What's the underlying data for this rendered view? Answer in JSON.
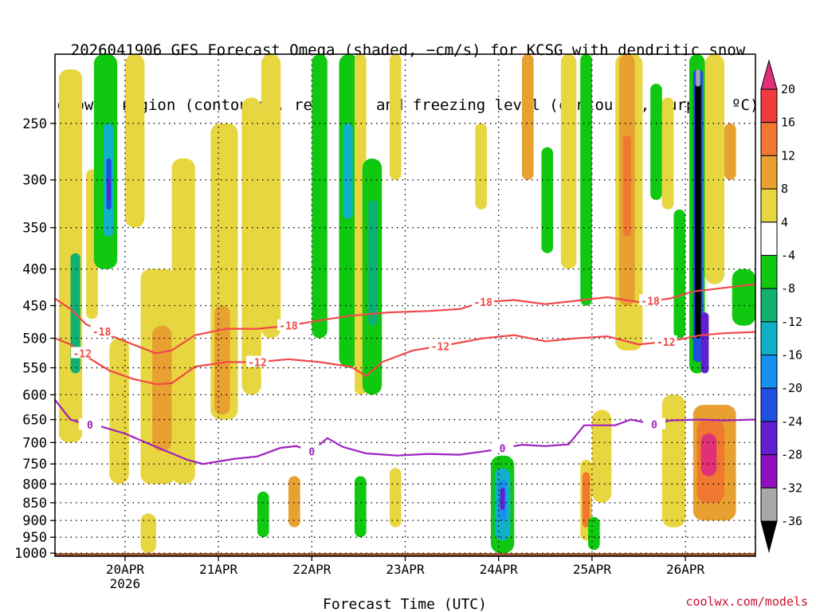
{
  "title_line1": "2026041906 GFS Forecast Omega (shaded, −cm/s) for KCSG with dendritic snow",
  "title_line2": "growth region (contoured, red, ºC) and freezing level (contoured, purple, ºC)",
  "credit": "coolwx.com/models",
  "chart_data": {
    "type": "heatmap",
    "title": "2026041906 GFS Forecast Omega (shaded, −cm/s) for KCSG with dendritic snow growth region (contoured, red, ºC) and freezing level (contoured, purple, ºC)",
    "xlabel": "Forecast Time (UTC)",
    "ylabel": "",
    "x_range_hours_since_2026041906": [
      0,
      180
    ],
    "x_ticks": [
      {
        "label": "20APR",
        "sublabel": "2026",
        "hour": 18
      },
      {
        "label": "21APR",
        "hour": 42
      },
      {
        "label": "22APR",
        "hour": 66
      },
      {
        "label": "23APR",
        "hour": 90
      },
      {
        "label": "24APR",
        "hour": 114
      },
      {
        "label": "25APR",
        "hour": 138
      },
      {
        "label": "26APR",
        "hour": 162
      }
    ],
    "y_axis": "pressure (hPa), log scale, inverted",
    "ylim": [
      1010,
      200
    ],
    "y_ticks": [
      250,
      300,
      350,
      400,
      450,
      500,
      550,
      600,
      650,
      700,
      750,
      800,
      850,
      900,
      950,
      1000
    ],
    "colorbar": {
      "labels": [
        20,
        16,
        12,
        8,
        4,
        -4,
        -8,
        -12,
        -16,
        -20,
        -24,
        -28,
        -32,
        -36
      ],
      "levels": [
        {
          "min": 20,
          "color": "#e0307a"
        },
        {
          "min": 16,
          "max": 20,
          "color": "#f03c3c"
        },
        {
          "min": 12,
          "max": 16,
          "color": "#f07830"
        },
        {
          "min": 8,
          "max": 12,
          "color": "#e8a030"
        },
        {
          "min": 4,
          "max": 8,
          "color": "#e8d640"
        },
        {
          "min": -4,
          "max": 4,
          "color": "#ffffff"
        },
        {
          "min": -8,
          "max": -4,
          "color": "#10c810"
        },
        {
          "min": -12,
          "max": -8,
          "color": "#10b070"
        },
        {
          "min": -16,
          "max": -12,
          "color": "#10b0c8"
        },
        {
          "min": -20,
          "max": -16,
          "color": "#1890f0"
        },
        {
          "min": -24,
          "max": -20,
          "color": "#2050e0"
        },
        {
          "min": -28,
          "max": -24,
          "color": "#6020d0"
        },
        {
          "min": -32,
          "max": -28,
          "color": "#9010c0"
        },
        {
          "min": -36,
          "max": -32,
          "color": "#a8a8a8"
        },
        {
          "max": -36,
          "color": "#000000"
        }
      ]
    },
    "shaded_regions": [
      {
        "hour_start": 1,
        "hour_end": 7,
        "p_top": 210,
        "p_bottom": 700,
        "omega": 6
      },
      {
        "hour_start": 4,
        "hour_end": 6.5,
        "p_top": 380,
        "p_bottom": 560,
        "omega": -10
      },
      {
        "hour_start": 8,
        "hour_end": 11,
        "p_top": 290,
        "p_bottom": 470,
        "omega": 6
      },
      {
        "hour_start": 10,
        "hour_end": 16,
        "p_top": 200,
        "p_bottom": 400,
        "omega": -7
      },
      {
        "hour_start": 12.5,
        "hour_end": 15,
        "p_top": 250,
        "p_bottom": 360,
        "omega": -15
      },
      {
        "hour_start": 13.2,
        "hour_end": 14.5,
        "p_top": 280,
        "p_bottom": 330,
        "omega": -22
      },
      {
        "hour_start": 13.5,
        "hour_end": 14.2,
        "p_top": 300,
        "p_bottom": 320,
        "omega": -27
      },
      {
        "hour_start": 14,
        "hour_end": 19,
        "p_top": 500,
        "p_bottom": 800,
        "omega": 6
      },
      {
        "hour_start": 18,
        "hour_end": 23,
        "p_top": 200,
        "p_bottom": 350,
        "omega": 6
      },
      {
        "hour_start": 22,
        "hour_end": 31,
        "p_top": 400,
        "p_bottom": 800,
        "omega": 6
      },
      {
        "hour_start": 25,
        "hour_end": 30,
        "p_top": 480,
        "p_bottom": 720,
        "omega": 10
      },
      {
        "hour_start": 30,
        "hour_end": 36,
        "p_top": 280,
        "p_bottom": 800,
        "omega": 5
      },
      {
        "hour_start": 40,
        "hour_end": 47,
        "p_top": 250,
        "p_bottom": 650,
        "omega": 6
      },
      {
        "hour_start": 41,
        "hour_end": 45,
        "p_top": 450,
        "p_bottom": 640,
        "omega": 10
      },
      {
        "hour_start": 48,
        "hour_end": 53,
        "p_top": 230,
        "p_bottom": 600,
        "omega": 5
      },
      {
        "hour_start": 53,
        "hour_end": 58,
        "p_top": 200,
        "p_bottom": 500,
        "omega": 6
      },
      {
        "hour_start": 66,
        "hour_end": 70,
        "p_top": 200,
        "p_bottom": 500,
        "omega": -6
      },
      {
        "hour_start": 73,
        "hour_end": 78,
        "p_top": 200,
        "p_bottom": 550,
        "omega": -7
      },
      {
        "hour_start": 74,
        "hour_end": 76.5,
        "p_top": 250,
        "p_bottom": 340,
        "omega": -14
      },
      {
        "hour_start": 77,
        "hour_end": 80,
        "p_top": 200,
        "p_bottom": 600,
        "omega": 5
      },
      {
        "hour_start": 79,
        "hour_end": 84,
        "p_top": 280,
        "p_bottom": 600,
        "omega": -7
      },
      {
        "hour_start": 80.5,
        "hour_end": 83,
        "p_top": 320,
        "p_bottom": 480,
        "omega": -12
      },
      {
        "hour_start": 86,
        "hour_end": 89,
        "p_top": 200,
        "p_bottom": 300,
        "omega": 5
      },
      {
        "hour_start": 108,
        "hour_end": 111,
        "p_top": 250,
        "p_bottom": 330,
        "omega": 5
      },
      {
        "hour_start": 120,
        "hour_end": 123,
        "p_top": 200,
        "p_bottom": 300,
        "omega": 8
      },
      {
        "hour_start": 125,
        "hour_end": 128,
        "p_top": 270,
        "p_bottom": 380,
        "omega": -8
      },
      {
        "hour_start": 130,
        "hour_end": 134,
        "p_top": 200,
        "p_bottom": 400,
        "omega": 6
      },
      {
        "hour_start": 135,
        "hour_end": 138,
        "p_top": 200,
        "p_bottom": 450,
        "omega": -6
      },
      {
        "hour_start": 144,
        "hour_end": 151,
        "p_top": 200,
        "p_bottom": 520,
        "omega": 6
      },
      {
        "hour_start": 145,
        "hour_end": 149,
        "p_top": 200,
        "p_bottom": 450,
        "omega": 11
      },
      {
        "hour_start": 146,
        "hour_end": 148,
        "p_top": 260,
        "p_bottom": 360,
        "omega": 15
      },
      {
        "hour_start": 153,
        "hour_end": 156,
        "p_top": 220,
        "p_bottom": 320,
        "omega": -7
      },
      {
        "hour_start": 156,
        "hour_end": 159,
        "p_top": 230,
        "p_bottom": 330,
        "omega": 6
      },
      {
        "hour_start": 159,
        "hour_end": 162,
        "p_top": 330,
        "p_bottom": 500,
        "omega": -6
      },
      {
        "hour_start": 163,
        "hour_end": 167,
        "p_top": 200,
        "p_bottom": 560,
        "omega": -8
      },
      {
        "hour_start": 164,
        "hour_end": 166.5,
        "p_top": 210,
        "p_bottom": 540,
        "omega": -22
      },
      {
        "hour_start": 164.5,
        "hour_end": 166,
        "p_top": 220,
        "p_bottom": 500,
        "omega": -40
      },
      {
        "hour_start": 164.7,
        "hour_end": 165.8,
        "p_top": 210,
        "p_bottom": 222,
        "omega": -33
      },
      {
        "hour_start": 166,
        "hour_end": 168,
        "p_top": 460,
        "p_bottom": 560,
        "omega": -26
      },
      {
        "hour_start": 167,
        "hour_end": 172,
        "p_top": 200,
        "p_bottom": 420,
        "omega": 6
      },
      {
        "hour_start": 172,
        "hour_end": 175,
        "p_top": 250,
        "p_bottom": 300,
        "omega": 10
      },
      {
        "hour_start": 174,
        "hour_end": 180,
        "p_top": 400,
        "p_bottom": 480,
        "omega": -8
      },
      {
        "hour_start": 164,
        "hour_end": 175,
        "p_top": 620,
        "p_bottom": 900,
        "omega": 8
      },
      {
        "hour_start": 165,
        "hour_end": 172,
        "p_top": 650,
        "p_bottom": 850,
        "omega": 14
      },
      {
        "hour_start": 166,
        "hour_end": 170,
        "p_top": 680,
        "p_bottom": 780,
        "omega": 20
      },
      {
        "hour_start": 156,
        "hour_end": 162,
        "p_top": 600,
        "p_bottom": 920,
        "omega": 5
      },
      {
        "hour_start": 138,
        "hour_end": 143,
        "p_top": 630,
        "p_bottom": 850,
        "omega": 5
      },
      {
        "hour_start": 135,
        "hour_end": 138,
        "p_top": 740,
        "p_bottom": 960,
        "omega": 6
      },
      {
        "hour_start": 135.5,
        "hour_end": 137.5,
        "p_top": 770,
        "p_bottom": 920,
        "omega": 15
      },
      {
        "hour_start": 137,
        "hour_end": 140,
        "p_top": 890,
        "p_bottom": 990,
        "omega": -7
      },
      {
        "hour_start": 112,
        "hour_end": 118,
        "p_top": 730,
        "p_bottom": 1000,
        "omega": -8
      },
      {
        "hour_start": 113,
        "hour_end": 117,
        "p_top": 760,
        "p_bottom": 960,
        "omega": -13
      },
      {
        "hour_start": 114,
        "hour_end": 116,
        "p_top": 790,
        "p_bottom": 900,
        "omega": -20
      },
      {
        "hour_start": 114.4,
        "hour_end": 115.6,
        "p_top": 810,
        "p_bottom": 870,
        "omega": -26
      },
      {
        "hour_start": 86,
        "hour_end": 89,
        "p_top": 760,
        "p_bottom": 920,
        "omega": 6
      },
      {
        "hour_start": 77,
        "hour_end": 80,
        "p_top": 780,
        "p_bottom": 950,
        "omega": -7
      },
      {
        "hour_start": 60,
        "hour_end": 63,
        "p_top": 780,
        "p_bottom": 920,
        "omega": 8
      },
      {
        "hour_start": 52,
        "hour_end": 55,
        "p_top": 820,
        "p_bottom": 950,
        "omega": -7
      },
      {
        "hour_start": 22,
        "hour_end": 26,
        "p_top": 880,
        "p_bottom": 1000,
        "omega": 5
      }
    ],
    "contours": [
      {
        "name": "-18",
        "color": "#f04848",
        "label_hour": [
          12,
          60,
          110,
          153
        ],
        "points": [
          [
            0,
            440
          ],
          [
            4,
            455
          ],
          [
            8,
            478
          ],
          [
            14,
            495
          ],
          [
            20,
            510
          ],
          [
            26,
            525
          ],
          [
            30,
            520
          ],
          [
            36,
            495
          ],
          [
            44,
            485
          ],
          [
            52,
            485
          ],
          [
            60,
            480
          ],
          [
            68,
            472
          ],
          [
            76,
            465
          ],
          [
            86,
            460
          ],
          [
            96,
            458
          ],
          [
            104,
            455
          ],
          [
            110,
            445
          ],
          [
            118,
            442
          ],
          [
            126,
            448
          ],
          [
            134,
            443
          ],
          [
            142,
            438
          ],
          [
            150,
            445
          ],
          [
            158,
            440
          ],
          [
            164,
            430
          ],
          [
            172,
            425
          ],
          [
            180,
            420
          ]
        ]
      },
      {
        "name": "-12",
        "color": "#f04848",
        "label_hour": [
          7,
          52,
          99,
          157
        ],
        "points": [
          [
            0,
            500
          ],
          [
            4,
            510
          ],
          [
            8,
            530
          ],
          [
            14,
            555
          ],
          [
            20,
            570
          ],
          [
            26,
            580
          ],
          [
            30,
            578
          ],
          [
            36,
            548
          ],
          [
            44,
            540
          ],
          [
            52,
            540
          ],
          [
            60,
            535
          ],
          [
            68,
            540
          ],
          [
            76,
            548
          ],
          [
            80,
            565
          ],
          [
            84,
            540
          ],
          [
            92,
            520
          ],
          [
            100,
            512
          ],
          [
            110,
            500
          ],
          [
            118,
            495
          ],
          [
            126,
            505
          ],
          [
            134,
            500
          ],
          [
            142,
            497
          ],
          [
            150,
            510
          ],
          [
            158,
            505
          ],
          [
            166,
            495
          ],
          [
            172,
            492
          ],
          [
            180,
            490
          ]
        ]
      },
      {
        "name": "0",
        "color": "#a020c0",
        "label_hour": [
          9,
          66,
          115,
          154
        ],
        "points": [
          [
            0,
            610
          ],
          [
            4,
            650
          ],
          [
            8,
            660
          ],
          [
            12,
            665
          ],
          [
            18,
            680
          ],
          [
            26,
            710
          ],
          [
            34,
            740
          ],
          [
            38,
            750
          ],
          [
            46,
            738
          ],
          [
            52,
            732
          ],
          [
            58,
            712
          ],
          [
            62,
            708
          ],
          [
            66,
            720
          ],
          [
            70,
            690
          ],
          [
            74,
            710
          ],
          [
            80,
            725
          ],
          [
            88,
            730
          ],
          [
            96,
            726
          ],
          [
            104,
            728
          ],
          [
            112,
            718
          ],
          [
            120,
            705
          ],
          [
            126,
            708
          ],
          [
            132,
            704
          ],
          [
            136,
            662
          ],
          [
            144,
            662
          ],
          [
            148,
            650
          ],
          [
            154,
            660
          ],
          [
            158,
            652
          ],
          [
            166,
            650
          ],
          [
            172,
            652
          ],
          [
            180,
            650
          ]
        ]
      }
    ],
    "ground": {
      "p_from": 1000,
      "color": "#a0522d"
    }
  }
}
